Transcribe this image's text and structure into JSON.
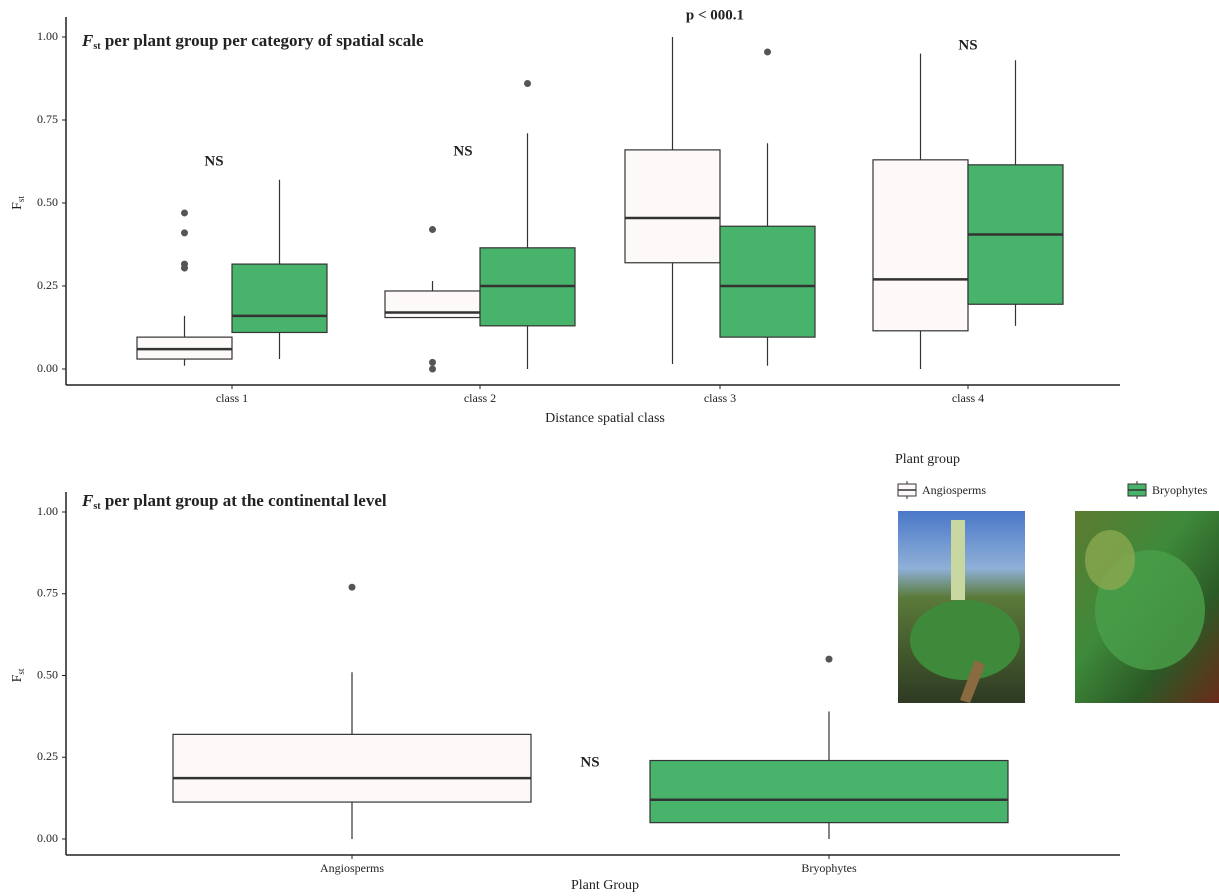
{
  "chart_data": [
    {
      "type": "box",
      "dodge": true,
      "title_symbol": "F",
      "title_subscript": "st",
      "title": " per plant group per category of spatial scale",
      "ylabel_symbol": "F",
      "ylabel_subscript": "st",
      "xlabel": "Distance spatial class",
      "categories": [
        "class 1",
        "class 2",
        "class 3",
        "class 4"
      ],
      "ylim": [
        0,
        1
      ],
      "yticks": [
        {
          "value": 0,
          "label": "0.00"
        },
        {
          "value": 0.25,
          "label": "0.25"
        },
        {
          "value": 0.5,
          "label": "0.50"
        },
        {
          "value": 0.75,
          "label": "0.75"
        },
        {
          "value": 1,
          "label": "1.00"
        }
      ],
      "annotations": [
        "NS",
        "NS",
        "p < 000.1",
        "NS"
      ],
      "series": [
        {
          "color": "#fdf9f9",
          "values": [
            {
              "min": 0.01,
              "q1": 0.03,
              "median": 0.06,
              "q3": 0.096,
              "max": 0.16,
              "outliers": [
                0.47,
                0.41,
                0.316,
                0.304
              ]
            },
            {
              "min": 0.155,
              "q1": 0.155,
              "median": 0.17,
              "q3": 0.235,
              "max": 0.265,
              "outliers": [
                0.42,
                0.02,
                0.0
              ]
            },
            {
              "min": 0.015,
              "q1": 0.32,
              "median": 0.455,
              "q3": 0.66,
              "max": 1.0,
              "outliers": []
            },
            {
              "min": 0.0,
              "q1": 0.115,
              "median": 0.27,
              "q3": 0.63,
              "max": 0.95,
              "outliers": []
            }
          ]
        },
        {
          "color": "#48b46b",
          "values": [
            {
              "min": 0.03,
              "q1": 0.11,
              "median": 0.16,
              "q3": 0.316,
              "max": 0.57,
              "outliers": []
            },
            {
              "min": 0.0,
              "q1": 0.13,
              "median": 0.25,
              "q3": 0.365,
              "max": 0.71,
              "outliers": [
                0.86
              ]
            },
            {
              "min": 0.01,
              "q1": 0.096,
              "median": 0.25,
              "q3": 0.43,
              "max": 0.68,
              "outliers": [
                0.955
              ]
            },
            {
              "min": 0.13,
              "q1": 0.195,
              "median": 0.405,
              "q3": 0.615,
              "max": 0.93,
              "outliers": []
            }
          ]
        }
      ]
    },
    {
      "type": "box",
      "dodge": false,
      "title_symbol": "F",
      "title_subscript": "st",
      "title": " per plant group at the continental level",
      "ylabel_symbol": "F",
      "ylabel_subscript": "st",
      "xlabel": "Plant Group",
      "categories": [
        "Angiosperms",
        "Bryophytes"
      ],
      "ylim": [
        0,
        1
      ],
      "yticks": [
        {
          "value": 0,
          "label": "0.00"
        },
        {
          "value": 0.25,
          "label": "0.25"
        },
        {
          "value": 0.5,
          "label": "0.50"
        },
        {
          "value": 0.75,
          "label": "0.75"
        },
        {
          "value": 1,
          "label": "1.00"
        }
      ],
      "annotations": [
        "NS"
      ],
      "legend_title": "Plant group",
      "series": [
        {
          "name": "Angiosperms",
          "color": "#fdf9f9",
          "values": [
            {
              "min": 0.0,
              "q1": 0.113,
              "median": 0.186,
              "q3": 0.32,
              "max": 0.51,
              "outliers": [
                0.77
              ]
            },
            null
          ]
        },
        {
          "name": "Bryophytes",
          "color": "#48b46b",
          "values": [
            null,
            {
              "min": 0.0,
              "q1": 0.05,
              "median": 0.12,
              "q3": 0.24,
              "max": 0.39,
              "outliers": [
                0.55
              ]
            }
          ]
        }
      ]
    }
  ]
}
